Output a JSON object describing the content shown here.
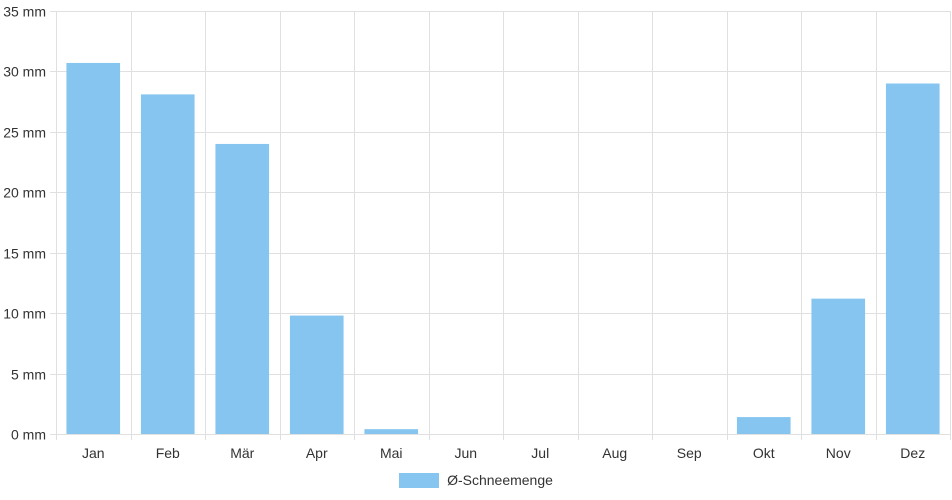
{
  "chart_data": {
    "type": "bar",
    "categories": [
      "Jan",
      "Feb",
      "Mär",
      "Apr",
      "Mai",
      "Jun",
      "Jul",
      "Aug",
      "Sep",
      "Okt",
      "Nov",
      "Dez"
    ],
    "series": [
      {
        "name": "Ø-Schneemenge",
        "values": [
          30.7,
          28.1,
          24.0,
          9.8,
          0.4,
          0,
          0,
          0,
          0,
          1.4,
          11.2,
          29.0
        ]
      }
    ],
    "ylim": [
      0,
      35
    ],
    "yticks": [
      "0 mm",
      "5 mm",
      "10 mm",
      "15 mm",
      "20 mm",
      "25 mm",
      "30 mm",
      "35 mm"
    ],
    "grid": true,
    "legend_position": "bottom",
    "colors": {
      "bar": "#86c5f0",
      "grid": "#e0e0e0",
      "text": "#333333"
    }
  }
}
